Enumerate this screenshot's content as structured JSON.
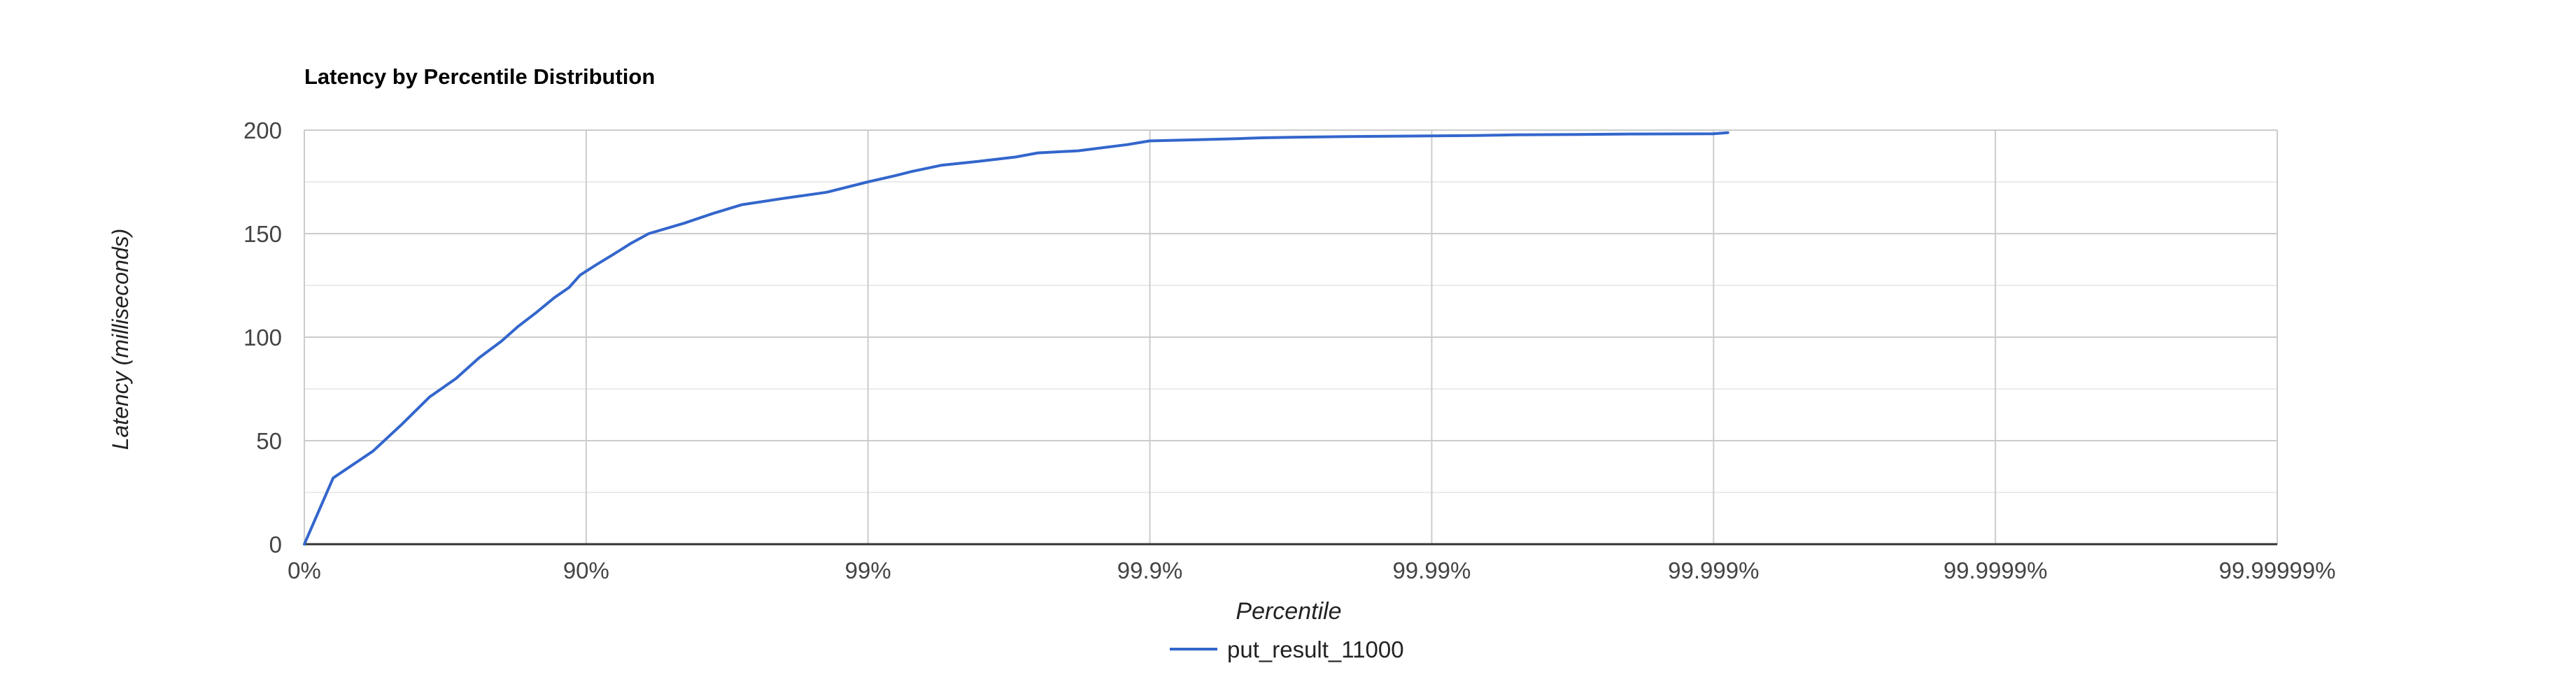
{
  "chart_data": {
    "type": "line",
    "title": "Latency by Percentile Distribution",
    "xlabel": "Percentile",
    "ylabel": "Latency (milliseconds)",
    "x_scale": "log-percentile",
    "x_tick_labels": [
      "0%",
      "90%",
      "99%",
      "99.9%",
      "99.99%",
      "99.999%",
      "99.9999%",
      "99.99999%"
    ],
    "y_ticks": [
      0,
      50,
      100,
      150,
      200
    ],
    "ylim": [
      0,
      200
    ],
    "grid": true,
    "legend_position": "bottom",
    "series": [
      {
        "name": "put_result_11000",
        "color": "#3366cc",
        "x_percentile": [
          0,
          21,
          43,
          55,
          64,
          71,
          76,
          80,
          82.5,
          85,
          87,
          88.5,
          89.5,
          90.8,
          92,
          93,
          94,
          95.5,
          96.5,
          97.2,
          98,
          98.6,
          99,
          99.2,
          99.3,
          99.45,
          99.6,
          99.7,
          99.75,
          99.82,
          99.88,
          99.9,
          99.93,
          99.95,
          99.96,
          99.97,
          99.98,
          99.99,
          99.993,
          99.995,
          99.997,
          99.998,
          99.999,
          99.99911
        ],
        "y_ms": [
          0,
          32,
          45,
          58,
          71,
          80,
          90,
          98,
          105,
          112,
          119,
          124,
          130,
          135,
          140,
          145,
          150,
          155,
          160,
          164,
          167,
          170,
          175,
          178,
          180,
          183,
          185,
          187,
          189,
          190,
          193,
          194.8,
          195.3,
          195.8,
          196.3,
          196.6,
          196.9,
          197.2,
          197.4,
          197.7,
          197.9,
          198.1,
          198.2,
          198.8
        ]
      }
    ]
  },
  "colors": {
    "series": "#3366cc",
    "grid_major": "#cccccc",
    "grid_minor": "#ebebeb",
    "axis": "#333333",
    "text": "#444444",
    "title": "#000000"
  }
}
